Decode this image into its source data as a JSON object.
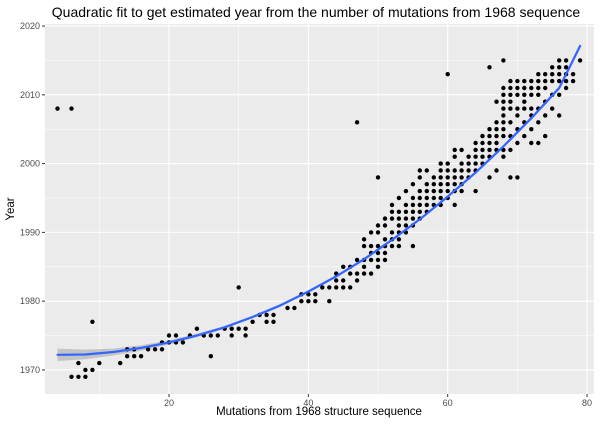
{
  "chart_data": {
    "type": "scatter",
    "title": "Quadratic fit to get estimated year from the number of mutations from 1968 sequence",
    "xlabel": "Mutations from 1968 structure sequence",
    "ylabel": "Year",
    "xlim": [
      2.2,
      81.0
    ],
    "ylim": [
      1966.5,
      2020.3
    ],
    "x_ticks": [
      20,
      40,
      60,
      80
    ],
    "y_ticks": [
      1970,
      1980,
      1990,
      2000,
      2010,
      2020
    ],
    "grid": true,
    "legend": "none",
    "colors": {
      "panel": "#ebebeb",
      "grid": "#ffffff",
      "points": "#000000",
      "fit": "#3366ff",
      "ribbon": "#bdbdbd"
    },
    "points": [
      [
        4,
        2008
      ],
      [
        6,
        2008
      ],
      [
        9,
        1977
      ],
      [
        30,
        1982
      ],
      [
        47,
        2006
      ],
      [
        60,
        2013
      ],
      [
        66,
        2014
      ],
      [
        68,
        2015
      ],
      [
        76,
        2007
      ],
      [
        74,
        2004
      ],
      [
        72,
        2003
      ],
      [
        73,
        2003
      ],
      [
        69,
        1998
      ],
      [
        70,
        1998
      ],
      [
        66,
        1998
      ],
      [
        50,
        1998
      ],
      [
        44,
        1983
      ],
      [
        53,
        1989
      ],
      [
        55,
        1988
      ],
      [
        56,
        1992
      ],
      [
        51,
        1988
      ],
      [
        50,
        1986
      ],
      [
        64,
        1996
      ],
      [
        67,
        1999
      ],
      [
        6,
        1969
      ],
      [
        7,
        1969
      ],
      [
        8,
        1969
      ],
      [
        7,
        1971
      ],
      [
        8,
        1970
      ],
      [
        9,
        1970
      ],
      [
        10,
        1971
      ],
      [
        13,
        1971
      ],
      [
        14,
        1972
      ],
      [
        14,
        1973
      ],
      [
        15,
        1972
      ],
      [
        15,
        1973
      ],
      [
        16,
        1972
      ],
      [
        17,
        1973
      ],
      [
        18,
        1973
      ],
      [
        19,
        1974
      ],
      [
        19,
        1973
      ],
      [
        20,
        1974
      ],
      [
        20,
        1975
      ],
      [
        21,
        1974
      ],
      [
        21,
        1975
      ],
      [
        22,
        1974
      ],
      [
        23,
        1975
      ],
      [
        24,
        1976
      ],
      [
        25,
        1975
      ],
      [
        26,
        1975
      ],
      [
        27,
        1975
      ],
      [
        26,
        1972
      ],
      [
        28,
        1976
      ],
      [
        29,
        1975
      ],
      [
        29,
        1976
      ],
      [
        30,
        1976
      ],
      [
        31,
        1976
      ],
      [
        31,
        1975
      ],
      [
        32,
        1977
      ],
      [
        33,
        1978
      ],
      [
        34,
        1977
      ],
      [
        34,
        1978
      ],
      [
        35,
        1977
      ],
      [
        35,
        1978
      ],
      [
        37,
        1979
      ],
      [
        38,
        1979
      ],
      [
        39,
        1980
      ],
      [
        39,
        1981
      ],
      [
        40,
        1980
      ],
      [
        40,
        1981
      ],
      [
        41,
        1980
      ],
      [
        41,
        1981
      ],
      [
        42,
        1982
      ],
      [
        43,
        1980
      ],
      [
        43,
        1982
      ],
      [
        44,
        1982
      ],
      [
        44,
        1984
      ],
      [
        45,
        1982
      ],
      [
        45,
        1983
      ],
      [
        45,
        1985
      ],
      [
        46,
        1982
      ],
      [
        46,
        1984
      ],
      [
        46,
        1985
      ],
      [
        47,
        1983
      ],
      [
        47,
        1984
      ],
      [
        47,
        1986
      ],
      [
        48,
        1984
      ],
      [
        48,
        1985
      ],
      [
        48,
        1986
      ],
      [
        48,
        1988
      ],
      [
        48,
        1989
      ],
      [
        49,
        1984
      ],
      [
        49,
        1986
      ],
      [
        49,
        1987
      ],
      [
        49,
        1988
      ],
      [
        49,
        1990
      ],
      [
        50,
        1985
      ],
      [
        50,
        1987
      ],
      [
        50,
        1988
      ],
      [
        50,
        1990
      ],
      [
        50,
        1991
      ],
      [
        51,
        1986
      ],
      [
        51,
        1987
      ],
      [
        51,
        1989
      ],
      [
        51,
        1991
      ],
      [
        51,
        1992
      ],
      [
        52,
        1988
      ],
      [
        52,
        1989
      ],
      [
        52,
        1990
      ],
      [
        52,
        1992
      ],
      [
        52,
        1993
      ],
      [
        52,
        1994
      ],
      [
        53,
        1988
      ],
      [
        53,
        1990
      ],
      [
        53,
        1991
      ],
      [
        53,
        1992
      ],
      [
        53,
        1993
      ],
      [
        53,
        1995
      ],
      [
        54,
        1990
      ],
      [
        54,
        1991
      ],
      [
        54,
        1992
      ],
      [
        54,
        1993
      ],
      [
        54,
        1994
      ],
      [
        54,
        1996
      ],
      [
        55,
        1991
      ],
      [
        55,
        1992
      ],
      [
        55,
        1993
      ],
      [
        55,
        1994
      ],
      [
        55,
        1995
      ],
      [
        55,
        1997
      ],
      [
        56,
        1993
      ],
      [
        56,
        1994
      ],
      [
        56,
        1995
      ],
      [
        56,
        1996
      ],
      [
        56,
        1998
      ],
      [
        56,
        1999
      ],
      [
        57,
        1993
      ],
      [
        57,
        1994
      ],
      [
        57,
        1995
      ],
      [
        57,
        1996
      ],
      [
        57,
        1997
      ],
      [
        57,
        1999
      ],
      [
        58,
        1994
      ],
      [
        58,
        1995
      ],
      [
        58,
        1996
      ],
      [
        58,
        1997
      ],
      [
        58,
        1998
      ],
      [
        59,
        1994
      ],
      [
        59,
        1995
      ],
      [
        59,
        1996
      ],
      [
        59,
        1997
      ],
      [
        59,
        1998
      ],
      [
        59,
        1999
      ],
      [
        59,
        2000
      ],
      [
        60,
        1995
      ],
      [
        60,
        1996
      ],
      [
        60,
        1997
      ],
      [
        60,
        1998
      ],
      [
        60,
        1999
      ],
      [
        60,
        2000
      ],
      [
        61,
        1994
      ],
      [
        61,
        1996
      ],
      [
        61,
        1997
      ],
      [
        61,
        1998
      ],
      [
        61,
        1999
      ],
      [
        61,
        2001
      ],
      [
        61,
        2002
      ],
      [
        62,
        1996
      ],
      [
        62,
        1997
      ],
      [
        62,
        1998
      ],
      [
        62,
        1999
      ],
      [
        62,
        2000
      ],
      [
        62,
        2002
      ],
      [
        63,
        1998
      ],
      [
        63,
        1999
      ],
      [
        63,
        2000
      ],
      [
        63,
        2001
      ],
      [
        64,
        1999
      ],
      [
        64,
        2000
      ],
      [
        64,
        2001
      ],
      [
        64,
        2002
      ],
      [
        64,
        2003
      ],
      [
        65,
        2000
      ],
      [
        65,
        2001
      ],
      [
        65,
        2002
      ],
      [
        65,
        2003
      ],
      [
        65,
        2004
      ],
      [
        66,
        2001
      ],
      [
        66,
        2002
      ],
      [
        66,
        2003
      ],
      [
        66,
        2004
      ],
      [
        66,
        2005
      ],
      [
        67,
        2002
      ],
      [
        67,
        2003
      ],
      [
        67,
        2004
      ],
      [
        67,
        2005
      ],
      [
        67,
        2006
      ],
      [
        67,
        2009
      ],
      [
        68,
        2001
      ],
      [
        68,
        2002
      ],
      [
        68,
        2004
      ],
      [
        68,
        2005
      ],
      [
        68,
        2006
      ],
      [
        68,
        2007
      ],
      [
        68,
        2008
      ],
      [
        68,
        2009
      ],
      [
        68,
        2010
      ],
      [
        68,
        2011
      ],
      [
        69,
        2002
      ],
      [
        69,
        2004
      ],
      [
        69,
        2006
      ],
      [
        69,
        2008
      ],
      [
        69,
        2009
      ],
      [
        69,
        2010
      ],
      [
        69,
        2011
      ],
      [
        69,
        2012
      ],
      [
        70,
        2003
      ],
      [
        70,
        2005
      ],
      [
        70,
        2007
      ],
      [
        70,
        2008
      ],
      [
        70,
        2010
      ],
      [
        70,
        2011
      ],
      [
        70,
        2012
      ],
      [
        71,
        2004
      ],
      [
        71,
        2006
      ],
      [
        71,
        2008
      ],
      [
        71,
        2009
      ],
      [
        71,
        2010
      ],
      [
        71,
        2011
      ],
      [
        71,
        2012
      ],
      [
        72,
        2005
      ],
      [
        72,
        2007
      ],
      [
        72,
        2008
      ],
      [
        72,
        2010
      ],
      [
        72,
        2011
      ],
      [
        72,
        2012
      ],
      [
        73,
        2006
      ],
      [
        73,
        2008
      ],
      [
        73,
        2010
      ],
      [
        73,
        2011
      ],
      [
        73,
        2012
      ],
      [
        73,
        2013
      ],
      [
        74,
        2007
      ],
      [
        74,
        2009
      ],
      [
        74,
        2011
      ],
      [
        74,
        2012
      ],
      [
        74,
        2013
      ],
      [
        75,
        2008
      ],
      [
        75,
        2010
      ],
      [
        75,
        2012
      ],
      [
        75,
        2013
      ],
      [
        75,
        2014
      ],
      [
        76,
        2010
      ],
      [
        76,
        2012
      ],
      [
        76,
        2013
      ],
      [
        76,
        2014
      ],
      [
        76,
        2015
      ],
      [
        77,
        2011
      ],
      [
        77,
        2012
      ],
      [
        77,
        2013
      ],
      [
        77,
        2014
      ],
      [
        77,
        2015
      ],
      [
        78,
        2012
      ],
      [
        78,
        2013
      ],
      [
        79,
        2015
      ]
    ],
    "fit": {
      "method": "quadratic",
      "x": [
        4,
        8,
        12,
        16,
        20,
        24,
        28,
        32,
        36,
        40,
        44,
        48,
        52,
        56,
        60,
        64,
        68,
        72,
        76,
        79
      ],
      "y": [
        1972.2,
        1972.25,
        1972.6,
        1973.2,
        1974.0,
        1975.0,
        1976.2,
        1977.7,
        1979.4,
        1981.4,
        1983.6,
        1986.1,
        1988.9,
        1991.9,
        1995.2,
        1998.7,
        2002.5,
        2006.6,
        2011.0,
        2017.1
      ],
      "ci_halfwidth": [
        0.9,
        0.7,
        0.5,
        0.4,
        0.3,
        0.25,
        0.2,
        0.2,
        0.2,
        0.2,
        0.2,
        0.2,
        0.2,
        0.2,
        0.2,
        0.2,
        0.2,
        0.25,
        0.3,
        0.4
      ]
    }
  }
}
